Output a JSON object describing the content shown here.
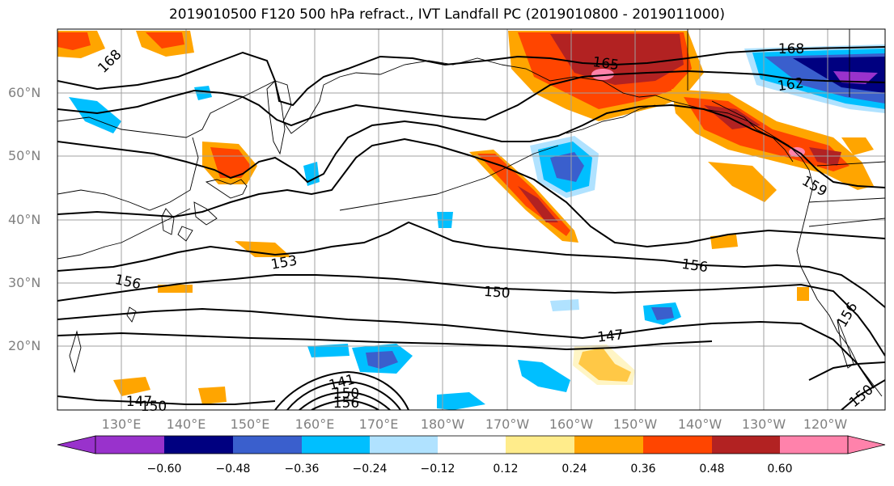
{
  "title": "2019010500 F120 500 hPa refract., IVT Landfall PC (2019010800 - 2019011000)",
  "lat_labels": [
    "60°N",
    "50°N",
    "40°N",
    "30°N",
    "20°N"
  ],
  "lon_labels": [
    "130°E",
    "140°E",
    "150°E",
    "160°E",
    "170°E",
    "180°W",
    "170°W",
    "160°W",
    "150°W",
    "140°W",
    "130°W",
    "120°W"
  ],
  "contour_labels": [
    "168",
    "165",
    "168",
    "162",
    "159",
    "156",
    "153",
    "156",
    "150",
    "147",
    "156",
    "150",
    "147",
    "150",
    "141",
    "150",
    "156"
  ],
  "colorbar": {
    "ticks": [
      "−0.60",
      "−0.48",
      "−0.36",
      "−0.24",
      "−0.12",
      "0.12",
      "0.24",
      "0.36",
      "0.48",
      "0.60"
    ],
    "colors": [
      "#9932cc",
      "#000080",
      "#3a5fcd",
      "#00bfff",
      "#b0e2ff",
      "#ffffff",
      "#ffec8b",
      "#ffa500",
      "#ff4500",
      "#b22222",
      "#ff82ab"
    ]
  }
}
